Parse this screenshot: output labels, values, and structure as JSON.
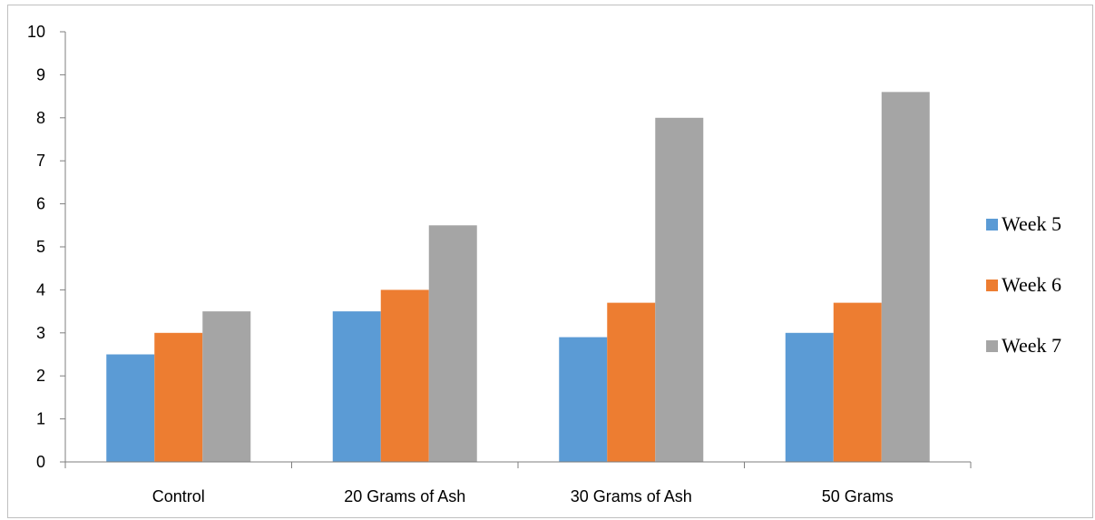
{
  "chart_data": {
    "type": "bar",
    "title": "",
    "xlabel": "",
    "ylabel": "",
    "ylim": [
      0,
      10
    ],
    "yticks": [
      "0",
      "1",
      "2",
      "3",
      "4",
      "5",
      "6",
      "7",
      "8",
      "9",
      "10"
    ],
    "categories": [
      "Control",
      "20 Grams of Ash",
      "30 Grams of Ash",
      "50 Grams"
    ],
    "series": [
      {
        "name": "Week 5",
        "color": "#5b9bd5",
        "values": [
          2.5,
          3.5,
          2.9,
          3.0
        ]
      },
      {
        "name": "Week 6",
        "color": "#ed7d31",
        "values": [
          3.0,
          4.0,
          3.7,
          3.7
        ]
      },
      {
        "name": "Week 7",
        "color": "#a5a5a5",
        "values": [
          3.5,
          5.5,
          8.0,
          8.6
        ]
      }
    ],
    "grid": false,
    "legend_position": "right"
  }
}
